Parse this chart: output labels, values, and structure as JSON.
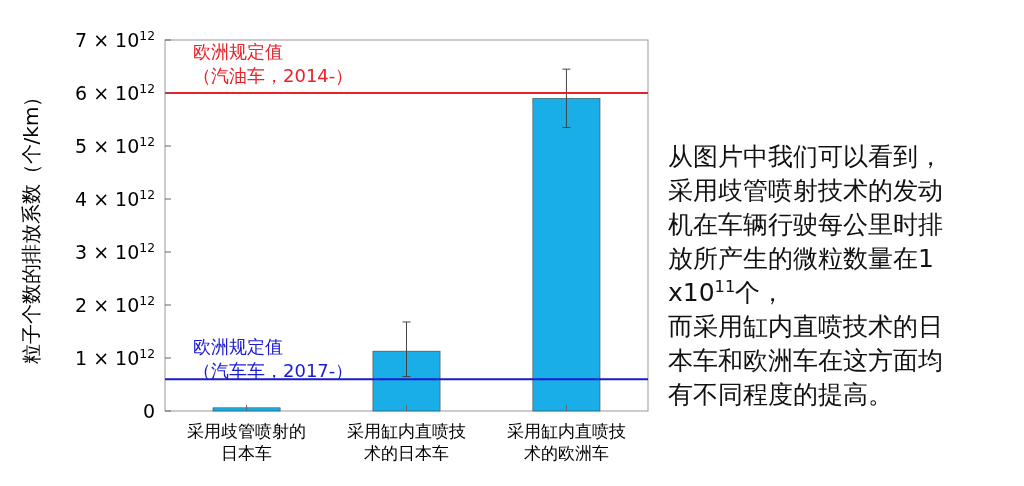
{
  "chart_data": {
    "type": "bar",
    "categories": [
      "采用歧管喷射的日本车",
      "采用缸内直喷技术的日本车",
      "采用缸内直喷技术的欧洲车"
    ],
    "values": [
      60000000000.0,
      1130000000000.0,
      5900000000000.0
    ],
    "errors": [
      null,
      [
        650000000000.0,
        1680000000000.0
      ],
      [
        5350000000000.0,
        6450000000000.0
      ]
    ],
    "color": "#1aaee8",
    "ylabel": "粒子个数的排放系数（个/km）",
    "ylim": [
      0,
      7000000000000.0
    ],
    "yticks": [
      0,
      {
        "value": 1000000000000.0,
        "label": "1 × 10$^{12}$"
      },
      {
        "value": 2000000000000.0,
        "label": "2 × 10$^{12}$"
      },
      {
        "value": 3000000000000.0,
        "label": "3 × 10$^{12}$"
      },
      {
        "value": 4000000000000.0,
        "label": "4 × 10$^{12}$"
      },
      {
        "value": 5000000000000.0,
        "label": "5 × 10$^{12}$"
      },
      {
        "value": 6000000000000.0,
        "label": "6 × 10$^{12}$"
      },
      {
        "value": 7000000000000.0,
        "label": "7 × 10$^{12}$"
      }
    ],
    "ref_lines": [
      {
        "axis": "y",
        "value": 6000000000000.0,
        "label": "欧洲规定值（汽油车，2014-）",
        "color": "#e8222a"
      },
      {
        "axis": "y",
        "value": 600000000000.0,
        "label": "欧洲规定值（汽车车，2017-）",
        "color": "#1a1ad0"
      }
    ],
    "annotations": [
      "从图片中我们可以看到，采用歧管喷射技术的发动机在车辆行驶每公里时排放所产生的微粒数量在1x10$^{11}$个，而采用缸内直喷技术的日本车和欧洲车在这方面均有不同程度的提高。"
    ],
    "grid": false
  }
}
